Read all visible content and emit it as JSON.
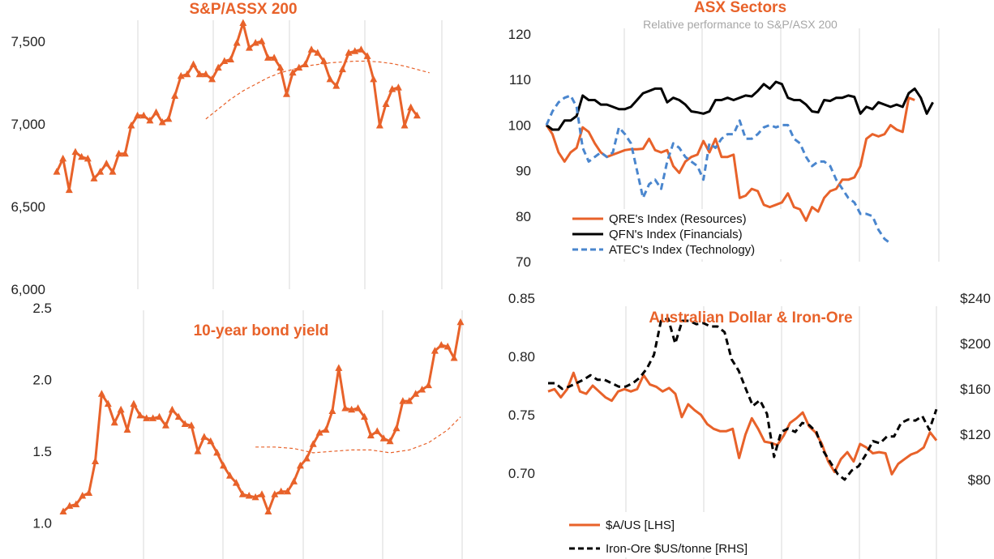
{
  "colors": {
    "orange": "#E8622A",
    "black": "#000000",
    "blue": "#4A86CE",
    "grid": "#d9d9d9",
    "axis_text": "#222222",
    "subtitle": "#a6a6a6"
  },
  "chart_data": [
    {
      "id": "asx200",
      "type": "line",
      "title": "S&P/ASSX 200",
      "ylim": [
        6000,
        7750
      ],
      "yticks": [
        6000,
        6500,
        7000,
        7500
      ],
      "ytick_labels": [
        "6,000",
        "6,500",
        "7,000",
        "7,500"
      ],
      "grid": "vertical",
      "series": [
        {
          "style": "solid-triangle-markers",
          "color": "#E8622A",
          "x": [
            0,
            1,
            2,
            3,
            4,
            5,
            6,
            7,
            8,
            9,
            10,
            11,
            12,
            13,
            14,
            15,
            16,
            17,
            18,
            19,
            20,
            21,
            22,
            23,
            24,
            25,
            26,
            27,
            28,
            29,
            30,
            31,
            32,
            33,
            34,
            35,
            36,
            37,
            38,
            39,
            40,
            41,
            42,
            43,
            44,
            45,
            46,
            47,
            48,
            49,
            50,
            51,
            52,
            53,
            54,
            55,
            56,
            57,
            58,
            59,
            60,
            61,
            62
          ],
          "values": [
            6710,
            6790,
            6600,
            6830,
            6800,
            6790,
            6670,
            6710,
            6760,
            6710,
            6820,
            6820,
            6990,
            7050,
            7050,
            7020,
            7070,
            7010,
            7030,
            7170,
            7290,
            7300,
            7360,
            7300,
            7300,
            7270,
            7340,
            7380,
            7390,
            7490,
            7610,
            7460,
            7490,
            7500,
            7400,
            7400,
            7340,
            7180,
            7310,
            7340,
            7360,
            7450,
            7430,
            7380,
            7270,
            7230,
            7330,
            7430,
            7440,
            7450,
            7410,
            7270,
            6990,
            7120,
            7210,
            7220,
            6990,
            7100,
            7050,
            null,
            null,
            null,
            null
          ]
        },
        {
          "style": "dashed",
          "color": "#E8622A",
          "x": [
            24,
            26,
            28,
            30,
            32,
            34,
            36,
            38,
            40,
            42,
            44,
            46,
            48,
            50,
            52,
            54,
            56,
            58,
            60
          ],
          "values": [
            7030,
            7090,
            7150,
            7200,
            7240,
            7280,
            7310,
            7330,
            7350,
            7360,
            7370,
            7375,
            7380,
            7380,
            7375,
            7365,
            7350,
            7330,
            7310
          ]
        }
      ]
    },
    {
      "id": "bond",
      "type": "line",
      "title": "10-year bond yield",
      "ylim": [
        0.75,
        2.5
      ],
      "yticks": [
        1.0,
        1.5,
        2.0,
        2.5
      ],
      "ytick_labels": [
        "1.0",
        "1.5",
        "2.0",
        "2.5"
      ],
      "grid": "vertical",
      "series": [
        {
          "style": "solid-triangle-markers",
          "color": "#E8622A",
          "values": [
            1.08,
            1.12,
            1.13,
            1.19,
            1.21,
            1.43,
            1.9,
            1.83,
            1.7,
            1.79,
            1.65,
            1.83,
            1.75,
            1.73,
            1.73,
            1.74,
            1.68,
            1.79,
            1.74,
            1.69,
            1.68,
            1.5,
            1.6,
            1.57,
            1.49,
            1.4,
            1.33,
            1.28,
            1.2,
            1.19,
            1.18,
            1.2,
            1.08,
            1.2,
            1.22,
            1.22,
            1.29,
            1.4,
            1.45,
            1.55,
            1.63,
            1.65,
            1.78,
            2.08,
            1.8,
            1.79,
            1.8,
            1.74,
            1.61,
            1.64,
            1.59,
            1.57,
            1.66,
            1.85,
            1.85,
            1.9,
            1.93,
            1.96,
            2.2,
            2.24,
            2.23,
            2.15,
            2.4
          ]
        },
        {
          "style": "dashed",
          "color": "#E8622A",
          "x": [
            30,
            33,
            36,
            39,
            42,
            45,
            48,
            51,
            54,
            57,
            60,
            62
          ],
          "values": [
            1.53,
            1.53,
            1.52,
            1.49,
            1.5,
            1.51,
            1.51,
            1.49,
            1.51,
            1.56,
            1.65,
            1.74
          ]
        }
      ]
    },
    {
      "id": "sectors",
      "type": "line",
      "title": "ASX Sectors",
      "subtitle": "Relative performance to S&P/ASX 200",
      "ylim": [
        70,
        120
      ],
      "yticks": [
        70,
        80,
        90,
        100,
        110,
        120
      ],
      "ytick_labels": [
        "70",
        "80",
        "90",
        "100",
        "110",
        "120"
      ],
      "grid": "vertical",
      "legend": "bottom-left",
      "series": [
        {
          "name": "QRE's Index (Resources)",
          "style": "solid",
          "color": "#E8622A",
          "values": [
            100,
            98,
            94,
            92,
            94,
            95,
            99.5,
            98.5,
            96,
            94,
            93,
            93.5,
            94,
            94.5,
            94.7,
            94.7,
            94.8,
            97,
            94.5,
            94,
            94.5,
            91,
            89.5,
            92,
            93,
            93.5,
            96.5,
            94,
            97,
            93,
            93,
            93.5,
            84,
            84.5,
            86,
            85.5,
            82.5,
            82,
            82.5,
            83,
            85,
            82,
            81.5,
            79,
            82,
            81,
            84,
            85.5,
            86,
            88,
            88,
            88.5,
            91,
            97,
            98,
            97.5,
            98,
            100,
            99,
            98.5,
            106,
            105.5
          ]
        },
        {
          "name": "QFN's Index (Financials)",
          "style": "solid",
          "color": "#000000",
          "values": [
            100,
            99,
            99,
            101,
            101,
            102,
            106.5,
            105.5,
            105.5,
            104.5,
            104.5,
            104,
            103.5,
            103.5,
            104,
            105.5,
            107,
            107.5,
            108,
            108,
            105,
            106,
            105.5,
            104.5,
            103,
            102.8,
            102.5,
            103,
            105.5,
            105.5,
            106,
            105.5,
            106,
            106.5,
            106.3,
            107.5,
            109,
            108,
            109.5,
            109,
            106,
            105.5,
            105.5,
            104.5,
            103,
            102.8,
            105.5,
            105.3,
            106,
            106,
            106.5,
            106.2,
            102.5,
            104,
            103.5,
            105,
            104.5,
            104,
            104.5,
            104,
            107,
            108,
            106,
            102.5,
            105
          ]
        },
        {
          "name": "ATEC's Index (Technology)",
          "style": "dashed",
          "color": "#4A86CE",
          "values": [
            100,
            103,
            105,
            106,
            106.5,
            104,
            95,
            92,
            93,
            94,
            93,
            94,
            99.5,
            98,
            96,
            90,
            84,
            87,
            88,
            86,
            92,
            96,
            95,
            93,
            92,
            91,
            88,
            96,
            95,
            97,
            98,
            98,
            101,
            97,
            97,
            98,
            99.5,
            100,
            99.5,
            100,
            100,
            97,
            96,
            93,
            91,
            92,
            92,
            91,
            88,
            86,
            84,
            83,
            80.5,
            80.5,
            80,
            77,
            75,
            74
          ]
        }
      ]
    },
    {
      "id": "aud",
      "type": "line",
      "title": "Australian Dollar & Iron-Ore",
      "ylim_left": [
        0.675,
        0.85
      ],
      "yticks_left": [
        0.7,
        0.75,
        0.8,
        0.85
      ],
      "ytick_labels_left": [
        "0.70",
        "0.75",
        "0.80",
        "0.85"
      ],
      "ylim_right": [
        60,
        240
      ],
      "yticks_right": [
        80,
        120,
        160,
        200,
        240
      ],
      "ytick_labels_right": [
        "$80",
        "$120",
        "$160",
        "$200",
        "$240"
      ],
      "grid": "vertical",
      "legend": "bottom-left",
      "series": [
        {
          "name": "$A/US [LHS]",
          "axis": "left",
          "style": "solid",
          "color": "#E8622A",
          "values": [
            0.77,
            0.772,
            0.765,
            0.772,
            0.786,
            0.77,
            0.768,
            0.775,
            0.77,
            0.765,
            0.762,
            0.77,
            0.772,
            0.77,
            0.772,
            0.784,
            0.776,
            0.774,
            0.77,
            0.773,
            0.768,
            0.748,
            0.759,
            0.754,
            0.75,
            0.742,
            0.738,
            0.736,
            0.736,
            0.738,
            0.713,
            0.733,
            0.747,
            0.738,
            0.727,
            0.726,
            0.724,
            0.732,
            0.743,
            0.747,
            0.752,
            0.74,
            0.735,
            0.725,
            0.71,
            0.701,
            0.712,
            0.718,
            0.71,
            0.725,
            0.722,
            0.717,
            0.718,
            0.717,
            0.699,
            0.708,
            0.712,
            0.716,
            0.718,
            0.722,
            0.735,
            0.728
          ]
        },
        {
          "name": "Iron-Ore $US/tonne [RHS]",
          "axis": "right",
          "style": "dashed",
          "color": "#000000",
          "values": [
            165,
            165,
            160,
            162,
            165,
            168,
            172,
            168,
            168,
            165,
            162,
            162,
            165,
            170,
            178,
            190,
            220,
            222,
            200,
            220,
            220,
            217,
            218,
            215,
            215,
            210,
            186,
            176,
            160,
            145,
            150,
            138,
            100,
            122,
            125,
            122,
            130,
            128,
            122,
            105,
            95,
            85,
            80,
            88,
            92,
            102,
            114,
            112,
            118,
            118,
            130,
            133,
            132,
            136,
            124,
            142
          ]
        }
      ]
    }
  ]
}
